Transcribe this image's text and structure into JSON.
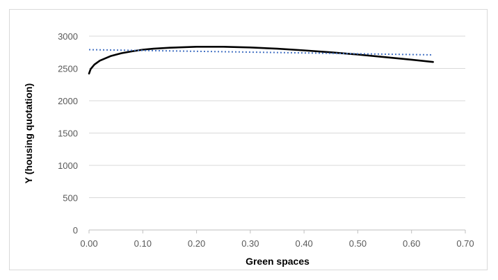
{
  "chart_data": {
    "type": "line",
    "title": "",
    "xlabel": "Green spaces",
    "ylabel": "Y (housing quotation)",
    "xlim": [
      0,
      0.7
    ],
    "ylim": [
      0,
      3000
    ],
    "x_ticks": [
      "0.00",
      "0.10",
      "0.20",
      "0.30",
      "0.40",
      "0.50",
      "0.60",
      "0.70"
    ],
    "y_ticks": [
      "0",
      "500",
      "1000",
      "1500",
      "2000",
      "2500",
      "3000"
    ],
    "grid": "horizontal",
    "legend": "none",
    "series": [
      {
        "style": "solid",
        "color": "#000000",
        "x": [
          0.0,
          0.003,
          0.01,
          0.02,
          0.04,
          0.06,
          0.08,
          0.1,
          0.12,
          0.15,
          0.2,
          0.25,
          0.3,
          0.35,
          0.4,
          0.45,
          0.5,
          0.55,
          0.6,
          0.64
        ],
        "y": [
          2420,
          2490,
          2560,
          2620,
          2690,
          2735,
          2765,
          2790,
          2805,
          2820,
          2835,
          2835,
          2825,
          2805,
          2780,
          2750,
          2715,
          2675,
          2635,
          2600
        ]
      },
      {
        "style": "dotted",
        "color": "#4472c4",
        "x": [
          0.0,
          0.64
        ],
        "y": [
          2790,
          2710
        ]
      }
    ]
  }
}
